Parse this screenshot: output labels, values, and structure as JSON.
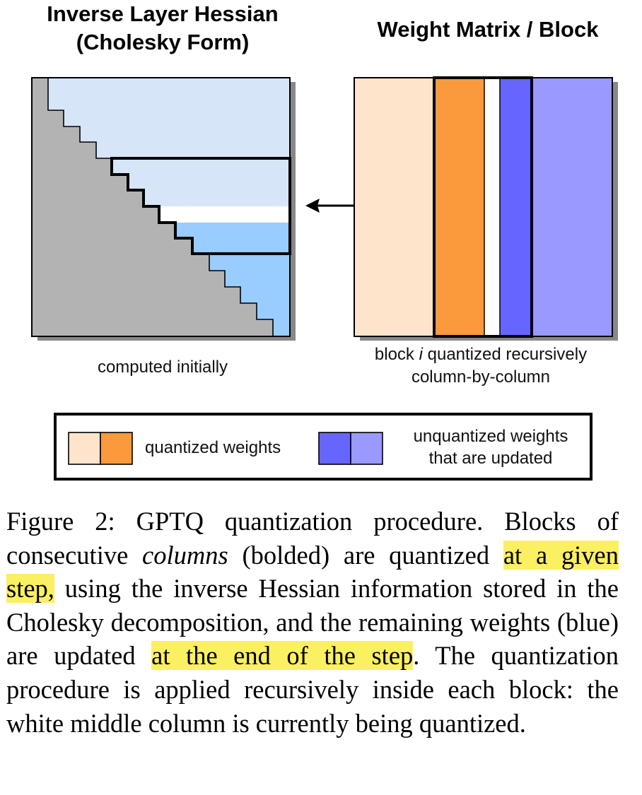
{
  "figure": {
    "left_panel": {
      "title_line1": "Inverse Layer Hessian",
      "title_line2": "(Cholesky Form)",
      "subtitle": "computed initially"
    },
    "right_panel": {
      "title": "Weight Matrix / Block",
      "subtitle_pre": "block ",
      "subtitle_var": "i",
      "subtitle_post": " quantized recursively",
      "subtitle_line2": "column-by-column"
    },
    "legend": {
      "quantized_label": "quantized weights",
      "unquantized_line1": "unquantized weights",
      "unquantized_line2": "that are updated"
    },
    "colors": {
      "hessian_light": "#d6e6f8",
      "hessian_active": "#99ccff",
      "hessian_gray": "#b3b3b3",
      "quantized_light": "#fde4cb",
      "quantized_dark": "#fb9a3c",
      "unquantized_dark": "#6666ff",
      "unquantized_light": "#9999ff",
      "highlight": "#fbef62"
    }
  },
  "caption": {
    "label": "Figure 2: ",
    "s1": "GPTQ quantization procedure. Blocks of consecutive ",
    "s1_italic": "columns",
    "s2": " (bolded) are quantized ",
    "hl1": "at a given step,",
    "s3": " using the inverse Hessian information stored in the Cholesky decomposition, and the remaining weights (blue) are updated ",
    "hl2": "at the end of the step",
    "s4": ".  The quantization procedure is applied recursively inside each block: the white middle column is currently being quantized."
  }
}
